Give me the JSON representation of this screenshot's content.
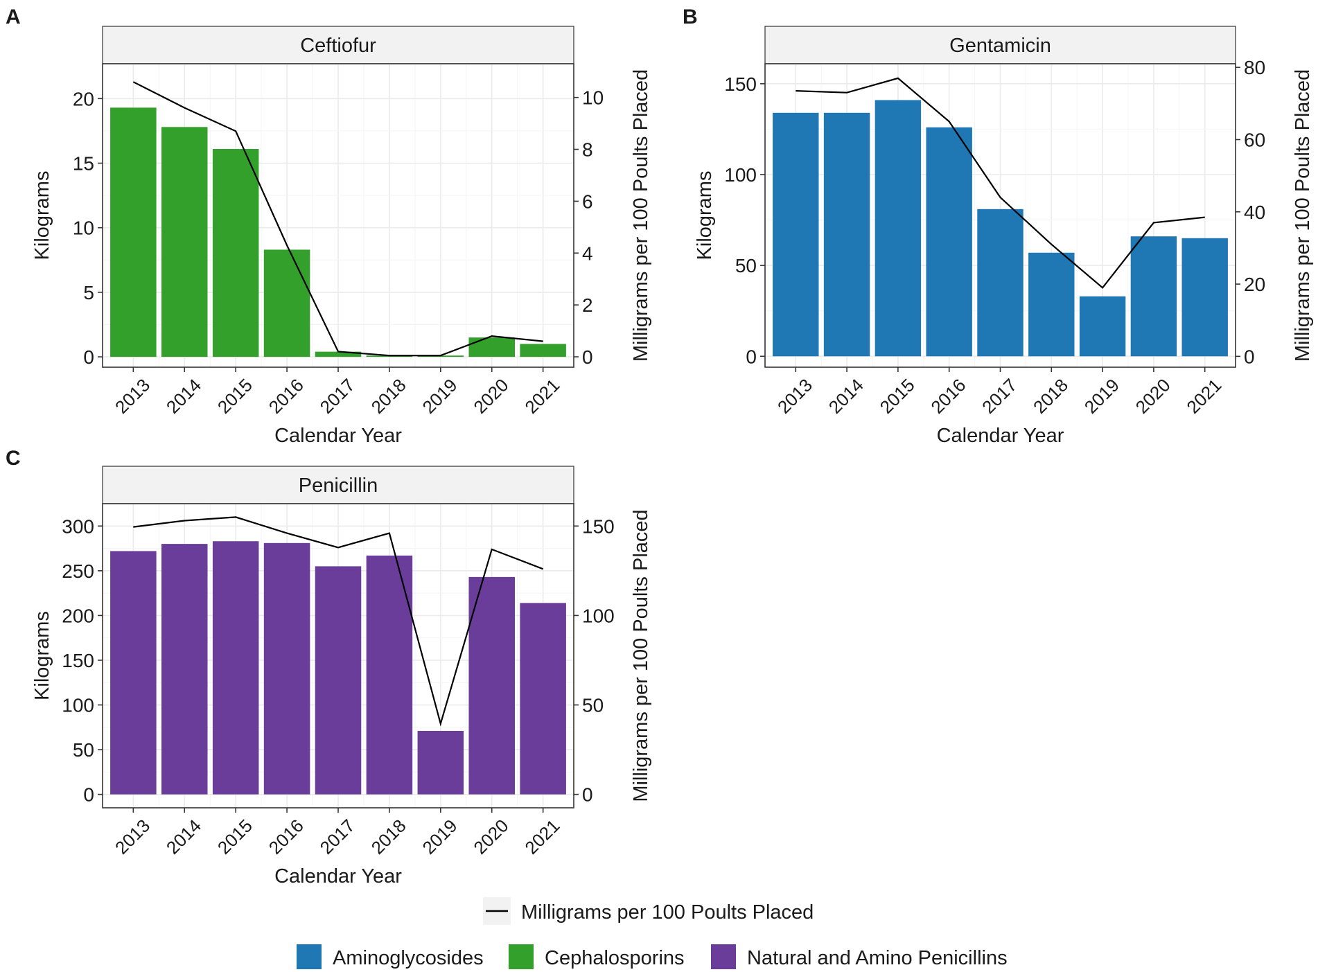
{
  "chart_data": [
    {
      "panel_label": "A",
      "type": "bar+line",
      "title": "Ceftiofur",
      "xlabel": "Calendar Year",
      "ylabel_left": "Kilograms",
      "ylabel_right": "Milligrams per 100 Poults Placed",
      "categories": [
        "2013",
        "2014",
        "2015",
        "2016",
        "2017",
        "2018",
        "2019",
        "2020",
        "2021"
      ],
      "bars": {
        "name": "Cephalosporins",
        "color": "#33a02c",
        "values": [
          19.3,
          17.8,
          16.1,
          8.3,
          0.4,
          0.1,
          0.1,
          1.5,
          1.0
        ]
      },
      "line": {
        "name": "Milligrams per 100 Poults Placed",
        "values": [
          10.6,
          9.6,
          8.7,
          4.3,
          0.2,
          0.05,
          0.05,
          0.8,
          0.6
        ]
      },
      "ylim_left": [
        -0.8,
        22.7
      ],
      "yticks_left": [
        0,
        5,
        10,
        15,
        20
      ],
      "ylim_right": [
        -0.4,
        11.3
      ],
      "yticks_right": [
        0,
        2,
        4,
        6,
        8,
        10
      ],
      "grid": true
    },
    {
      "panel_label": "B",
      "type": "bar+line",
      "title": "Gentamicin",
      "xlabel": "Calendar Year",
      "ylabel_left": "Kilograms",
      "ylabel_right": "Milligrams per 100 Poults Placed",
      "categories": [
        "2013",
        "2014",
        "2015",
        "2016",
        "2017",
        "2018",
        "2019",
        "2020",
        "2021"
      ],
      "bars": {
        "name": "Aminoglycosides",
        "color": "#1f78b4",
        "values": [
          134,
          134,
          141,
          126,
          81,
          57,
          33,
          66,
          65
        ]
      },
      "line": {
        "name": "Milligrams per 100 Poults Placed",
        "values": [
          73.5,
          73,
          77,
          65,
          44,
          31,
          19,
          37,
          38.5
        ]
      },
      "ylim_left": [
        -6,
        161
      ],
      "yticks_left": [
        0,
        50,
        100,
        150
      ],
      "ylim_right": [
        -3,
        81
      ],
      "yticks_right": [
        0,
        20,
        40,
        60,
        80
      ],
      "grid": true
    },
    {
      "panel_label": "C",
      "type": "bar+line",
      "title": "Penicillin",
      "xlabel": "Calendar Year",
      "ylabel_left": "Kilograms",
      "ylabel_right": "Milligrams per 100 Poults Placed",
      "categories": [
        "2013",
        "2014",
        "2015",
        "2016",
        "2017",
        "2018",
        "2019",
        "2020",
        "2021"
      ],
      "bars": {
        "name": "Natural and Amino Penicillins",
        "color": "#6a3d9a",
        "values": [
          272,
          280,
          283,
          281,
          255,
          267,
          71,
          243,
          214
        ]
      },
      "line": {
        "name": "Milligrams per 100 Poults Placed",
        "values": [
          149.5,
          153,
          155,
          146,
          138,
          146,
          39.5,
          137,
          126
        ]
      },
      "ylim_left": [
        -15,
        325
      ],
      "yticks_left": [
        0,
        50,
        100,
        150,
        200,
        250,
        300
      ],
      "ylim_right": [
        -7.5,
        162.5
      ],
      "yticks_right": [
        0,
        50,
        100,
        150
      ],
      "grid": true
    }
  ],
  "legend": {
    "line_label": "Milligrams per 100 Poults Placed",
    "line_color": "#000000",
    "fill_items": [
      {
        "label": "Aminoglycosides",
        "color": "#1f78b4"
      },
      {
        "label": "Cephalosporins",
        "color": "#33a02c"
      },
      {
        "label": "Natural and Amino Penicillins",
        "color": "#6a3d9a"
      }
    ]
  }
}
